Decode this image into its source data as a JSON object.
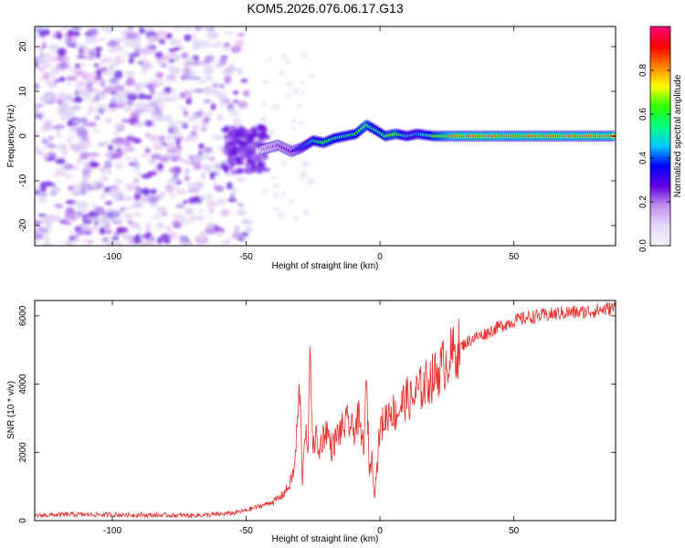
{
  "title": "KOM5.2026.076.06.17.G13",
  "colors": {
    "snr_line": "#e8312e",
    "axis": "#000000",
    "scatter_purple": "#7a1fe0",
    "scatter_light": "#cdb2f2"
  },
  "chart_data": [
    {
      "type": "heatmap",
      "title": "KOM5.2026.076.06.17.G13",
      "xlabel": "Height of straight line (km)",
      "ylabel": "Frequency (Hz)",
      "xlim": [
        -129,
        88
      ],
      "ylim": [
        -24.5,
        24.5
      ],
      "xticks": [
        -100,
        -50,
        0,
        50
      ],
      "xtick_labels": [
        "-100",
        "-50",
        "0",
        "50"
      ],
      "yticks": [
        -20,
        -10,
        0,
        10,
        20
      ],
      "ytick_labels": [
        "-20",
        "-10",
        "0",
        "10",
        "20"
      ],
      "colorbar": {
        "label": "Normalized spectral amplitude",
        "lim": [
          0,
          1
        ],
        "ticks": [
          0.0,
          0.2,
          0.4,
          0.6,
          0.8
        ],
        "tick_labels": [
          "0.0",
          "0.2",
          "0.4",
          "0.6",
          "0.8"
        ],
        "colors": [
          "#f5f0ff",
          "#e8d8f8",
          "#c090f0",
          "#6000e0",
          "#0000ff",
          "#00c8ff",
          "#00ff80",
          "#30ff00",
          "#ffff00",
          "#ff8000",
          "#ff0000",
          "#ff0080"
        ]
      },
      "features": {
        "noise_region_x": [
          -129,
          -55
        ],
        "transition_x": [
          -58,
          -42
        ],
        "signal_track": [
          {
            "x": -44,
            "f": -3.0,
            "amp": 0.18
          },
          {
            "x": -38,
            "f": -2.0,
            "amp": 0.25
          },
          {
            "x": -33,
            "f": -3.5,
            "amp": 0.3
          },
          {
            "x": -29,
            "f": -2.5,
            "amp": 0.45
          },
          {
            "x": -25,
            "f": -1.0,
            "amp": 0.55
          },
          {
            "x": -21,
            "f": -1.5,
            "amp": 0.7
          },
          {
            "x": -17,
            "f": -0.5,
            "amp": 0.65
          },
          {
            "x": -13,
            "f": 0.0,
            "amp": 0.6
          },
          {
            "x": -9,
            "f": 0.5,
            "amp": 0.65
          },
          {
            "x": -5,
            "f": 2.5,
            "amp": 0.75
          },
          {
            "x": -2,
            "f": 1.5,
            "amp": 0.6
          },
          {
            "x": 2,
            "f": 0.0,
            "amp": 0.7
          },
          {
            "x": 6,
            "f": 0.5,
            "amp": 0.75
          },
          {
            "x": 10,
            "f": 0.0,
            "amp": 0.55
          },
          {
            "x": 14,
            "f": 0.5,
            "amp": 0.5
          },
          {
            "x": 20,
            "f": 0.0,
            "amp": 0.7
          },
          {
            "x": 30,
            "f": 0.0,
            "amp": 0.9
          },
          {
            "x": 40,
            "f": 0.0,
            "amp": 0.9
          },
          {
            "x": 50,
            "f": 0.0,
            "amp": 0.85
          },
          {
            "x": 60,
            "f": 0.0,
            "amp": 0.9
          },
          {
            "x": 70,
            "f": 0.0,
            "amp": 0.88
          },
          {
            "x": 80,
            "f": 0.0,
            "amp": 0.9
          },
          {
            "x": 88,
            "f": 0.0,
            "amp": 0.9
          }
        ]
      }
    },
    {
      "type": "line",
      "xlabel": "Height of straight line (km)",
      "ylabel": "SNR (10 * v/v)",
      "xlim": [
        -129,
        88
      ],
      "ylim": [
        0,
        6450
      ],
      "xticks": [
        -100,
        -50,
        0,
        50
      ],
      "xtick_labels": [
        "-100",
        "-50",
        "0",
        "50"
      ],
      "yticks": [
        0,
        2000,
        4000,
        6000
      ],
      "ytick_labels": [
        "0",
        "2000",
        "4000",
        "6000"
      ],
      "series": [
        {
          "name": "SNR",
          "color": "#e8312e",
          "x": [
            -129,
            -115,
            -100,
            -85,
            -70,
            -60,
            -55,
            -50,
            -45,
            -40,
            -37,
            -34,
            -32,
            -30,
            -29,
            -28,
            -27,
            -26,
            -25,
            -24,
            -23,
            -22,
            -20,
            -18,
            -16,
            -14,
            -12,
            -10,
            -8,
            -7,
            -6,
            -5,
            -4,
            -3,
            -2,
            -1,
            0,
            2,
            4,
            6,
            8,
            10,
            12,
            14,
            16,
            18,
            20,
            22,
            25,
            28,
            30,
            35,
            40,
            45,
            50,
            55,
            60,
            65,
            70,
            75,
            80,
            85,
            88
          ],
          "y": [
            150,
            180,
            170,
            160,
            150,
            180,
            220,
            300,
            420,
            550,
            700,
            1000,
            1500,
            3900,
            1200,
            2800,
            1800,
            5000,
            2000,
            2600,
            1900,
            2300,
            2700,
            2100,
            2500,
            2700,
            2900,
            2600,
            3000,
            2400,
            2300,
            4000,
            1500,
            1800,
            800,
            1700,
            2700,
            3000,
            3300,
            3100,
            3400,
            3600,
            3500,
            3800,
            3900,
            4100,
            4200,
            4400,
            4700,
            4950,
            5100,
            5350,
            5500,
            5700,
            5850,
            5950,
            6000,
            6050,
            6100,
            6100,
            6150,
            6200,
            6250
          ]
        }
      ]
    }
  ]
}
